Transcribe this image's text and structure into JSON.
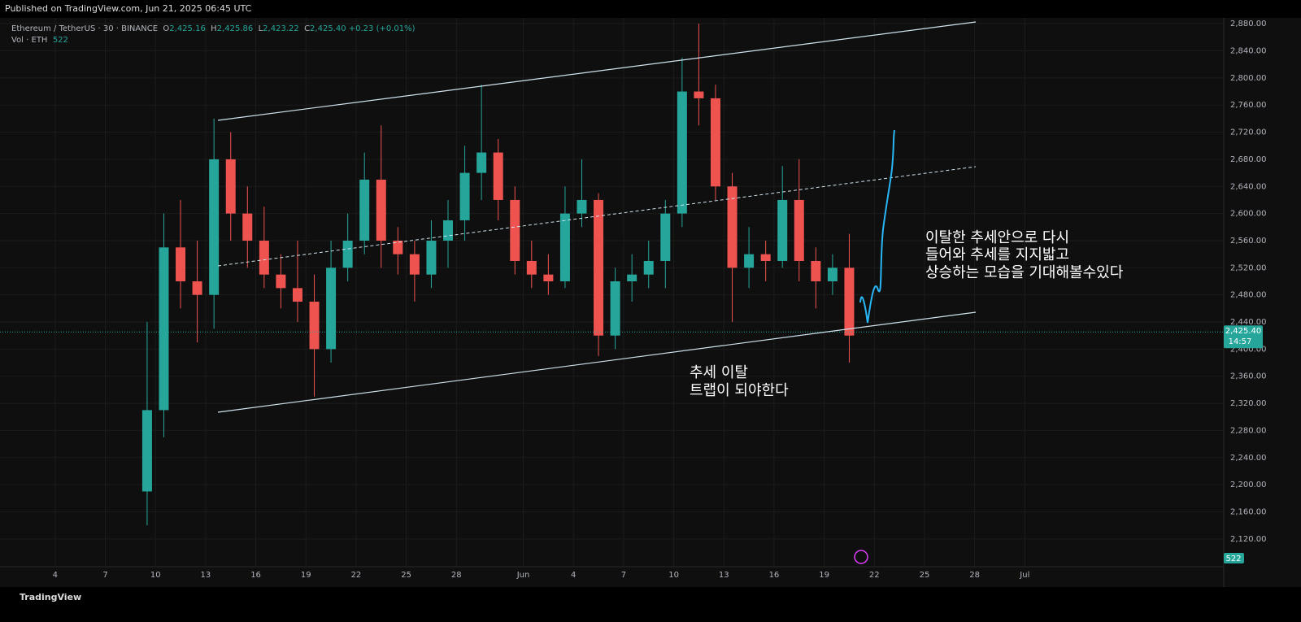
{
  "header": {
    "published": "Published on TradingView.com, Jun 21, 2025 06:45 UTC"
  },
  "legend": {
    "symbol": "Ethereum / TetherUS · 30 · BINANCE",
    "o_label": "O",
    "o": "2,425.16",
    "h_label": "H",
    "h": "2,425.86",
    "l_label": "L",
    "l": "2,423.22",
    "c_label": "C",
    "c": "2,425.40",
    "change": "+0.23 (+0.01%)",
    "vol_label": "Vol · ETH",
    "vol": "522"
  },
  "annotations": {
    "trap_1": "추세 이탈",
    "trap_2": "트랩이 되야한다",
    "note_1": "이탈한 추세안으로 다시",
    "note_2": "들어와 추세를 지지밟고",
    "note_3": "상승하는 모습을 기대해볼수있다"
  },
  "price_tag": {
    "price": "2,425.40",
    "countdown": "14:57"
  },
  "volume_tag": "522",
  "footer": {
    "brand": "TradingView"
  },
  "chart_data": {
    "type": "candlestick",
    "up_color": "#26a69a",
    "down_color": "#ef5350",
    "last_price": 2425.4,
    "x": [
      8.5,
      9.5,
      10.5,
      11.5,
      12.5,
      13.5,
      14.5,
      15.5,
      16.5,
      17.5,
      18.5,
      19.5,
      20.5,
      21.5,
      22.5,
      23.5,
      24.5,
      25.5,
      26.5,
      27.5,
      28.5,
      29.5,
      30.5,
      31.5,
      32.5,
      33.5,
      34.5,
      35.5,
      36.5,
      37.5,
      38.5,
      39.5,
      40.5,
      41.5,
      42.5,
      43.5,
      44.5,
      45.5,
      46.5,
      47.5,
      48.5,
      49.5,
      50.5
    ],
    "open": [
      2190,
      2310,
      2550,
      2500,
      2480,
      2680,
      2600,
      2560,
      2510,
      2490,
      2470,
      2400,
      2520,
      2560,
      2650,
      2560,
      2540,
      2510,
      2560,
      2590,
      2660,
      2690,
      2620,
      2530,
      2510,
      2500,
      2600,
      2620,
      2420,
      2500,
      2510,
      2530,
      2600,
      2780,
      2770,
      2640,
      2520,
      2540,
      2530,
      2620,
      2530,
      2500,
      2520
    ],
    "high": [
      2440,
      2600,
      2620,
      2560,
      2740,
      2720,
      2640,
      2610,
      2540,
      2560,
      2510,
      2560,
      2600,
      2690,
      2730,
      2580,
      2560,
      2590,
      2620,
      2700,
      2790,
      2710,
      2640,
      2560,
      2540,
      2640,
      2680,
      2630,
      2520,
      2540,
      2560,
      2620,
      2830,
      2880,
      2790,
      2660,
      2580,
      2560,
      2670,
      2680,
      2550,
      2540,
      2570
    ],
    "low": [
      2140,
      2270,
      2460,
      2410,
      2430,
      2560,
      2520,
      2490,
      2460,
      2440,
      2330,
      2380,
      2500,
      2540,
      2520,
      2510,
      2470,
      2490,
      2520,
      2560,
      2620,
      2590,
      2510,
      2490,
      2480,
      2490,
      2580,
      2390,
      2400,
      2470,
      2490,
      2490,
      2580,
      2730,
      2620,
      2440,
      2490,
      2500,
      2520,
      2500,
      2460,
      2480,
      2380
    ],
    "close": [
      2310,
      2550,
      2500,
      2480,
      2680,
      2600,
      2560,
      2510,
      2490,
      2470,
      2400,
      2520,
      2560,
      2650,
      2560,
      2540,
      2510,
      2560,
      2590,
      2660,
      2690,
      2620,
      2530,
      2510,
      2500,
      2600,
      2620,
      2420,
      2500,
      2510,
      2530,
      2600,
      2780,
      2770,
      2640,
      2520,
      2540,
      2530,
      2620,
      2530,
      2500,
      2520,
      2420
    ],
    "xlim": [
      -0.3,
      72.9
    ],
    "xticks": [
      {
        "value": 3,
        "label": "4"
      },
      {
        "value": 6,
        "label": "7"
      },
      {
        "value": 9,
        "label": "10"
      },
      {
        "value": 12,
        "label": "13"
      },
      {
        "value": 15,
        "label": "16"
      },
      {
        "value": 18,
        "label": "19"
      },
      {
        "value": 21,
        "label": "22"
      },
      {
        "value": 24,
        "label": "25"
      },
      {
        "value": 27,
        "label": "28"
      },
      {
        "value": 31,
        "label": "Jun"
      },
      {
        "value": 34,
        "label": "4"
      },
      {
        "value": 37,
        "label": "7"
      },
      {
        "value": 40,
        "label": "10"
      },
      {
        "value": 43,
        "label": "13"
      },
      {
        "value": 46,
        "label": "16"
      },
      {
        "value": 49,
        "label": "19"
      },
      {
        "value": 52,
        "label": "22"
      },
      {
        "value": 55,
        "label": "25"
      },
      {
        "value": 58,
        "label": "28"
      },
      {
        "value": 61,
        "label": "Jul"
      }
    ],
    "ylim": [
      2079,
      2915
    ],
    "yticks": [
      {
        "value": 2120,
        "label": "2,120.00"
      },
      {
        "value": 2160,
        "label": "2,160.00"
      },
      {
        "value": 2200,
        "label": "2,200.00"
      },
      {
        "value": 2240,
        "label": "2,240.00"
      },
      {
        "value": 2280,
        "label": "2,280.00"
      },
      {
        "value": 2320,
        "label": "2,320.00"
      },
      {
        "value": 2360,
        "label": "2,360.00"
      },
      {
        "value": 2400,
        "label": "2,400.00"
      },
      {
        "value": 2440,
        "label": "2,440.00"
      },
      {
        "value": 2480,
        "label": "2,480.00"
      },
      {
        "value": 2520,
        "label": "2,520.00"
      },
      {
        "value": 2560,
        "label": "2,560.00"
      },
      {
        "value": 2600,
        "label": "2,600.00"
      },
      {
        "value": 2640,
        "label": "2,640.00"
      },
      {
        "value": 2680,
        "label": "2,680.00"
      },
      {
        "value": 2720,
        "label": "2,720.00"
      },
      {
        "value": 2760,
        "label": "2,760.00"
      },
      {
        "value": 2800,
        "label": "2,800.00"
      },
      {
        "value": 2840,
        "label": "2,840.00"
      },
      {
        "value": 2880,
        "label": "2,880.00"
      }
    ]
  }
}
